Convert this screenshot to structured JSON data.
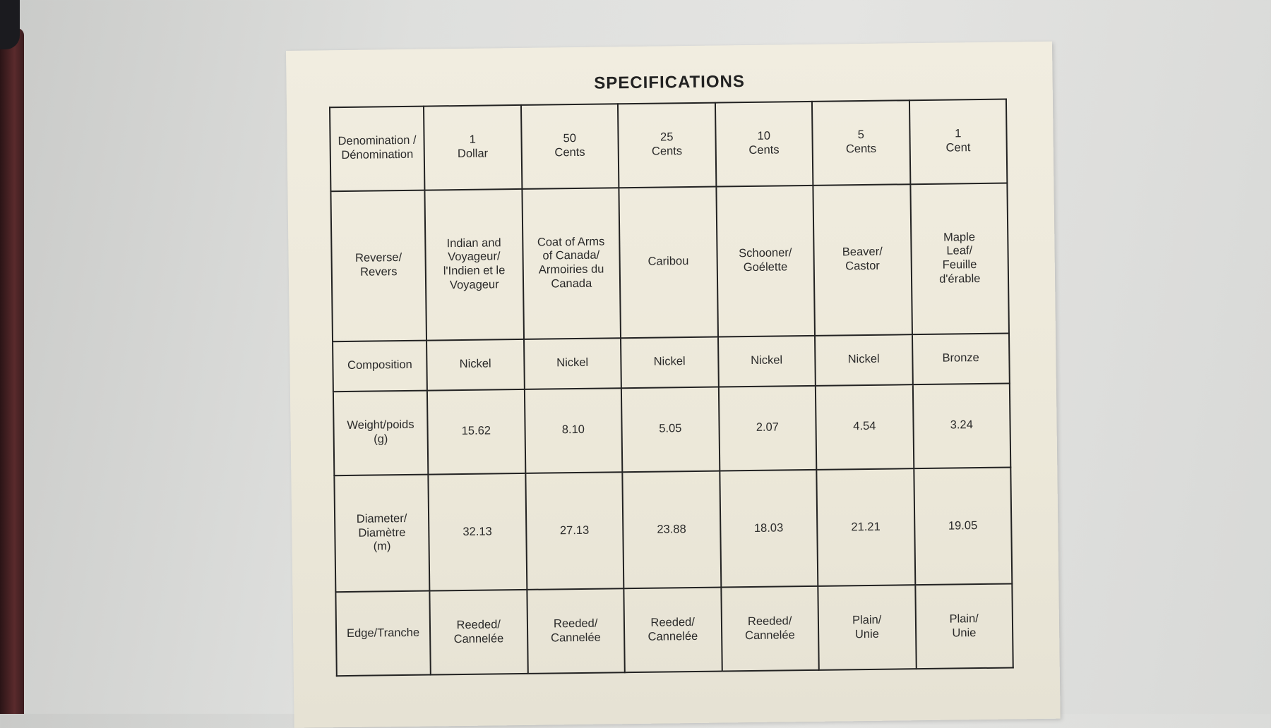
{
  "title": "SPECIFICATIONS",
  "rows": [
    {
      "label": "Denomination /\nDénomination",
      "values": [
        "1\nDollar",
        "50\nCents",
        "25\nCents",
        "10\nCents",
        "5\nCents",
        "1\nCent"
      ]
    },
    {
      "label": "Reverse/\nRevers",
      "values": [
        "Indian and\nVoyageur/\nl'Indien et le\nVoyageur",
        "Coat of Arms\nof Canada/\nArmoiries du\nCanada",
        "Caribou",
        "Schooner/\nGoélette",
        "Beaver/\nCastor",
        "Maple\nLeaf/\nFeuille\nd'érable"
      ]
    },
    {
      "label": "Composition",
      "values": [
        "Nickel",
        "Nickel",
        "Nickel",
        "Nickel",
        "Nickel",
        "Bronze"
      ]
    },
    {
      "label": "Weight/poids\n(g)",
      "values": [
        "15.62",
        "8.10",
        "5.05",
        "2.07",
        "4.54",
        "3.24"
      ]
    },
    {
      "label": "Diameter/\nDiamètre\n(m)",
      "values": [
        "32.13",
        "27.13",
        "23.88",
        "18.03",
        "21.21",
        "19.05"
      ]
    },
    {
      "label": "Edge/Tranche",
      "values": [
        "Reeded/\nCannelée",
        "Reeded/\nCannelée",
        "Reeded/\nCannelée",
        "Reeded/\nCannelée",
        "Plain/\nUnie",
        "Plain/\nUnie"
      ]
    }
  ]
}
